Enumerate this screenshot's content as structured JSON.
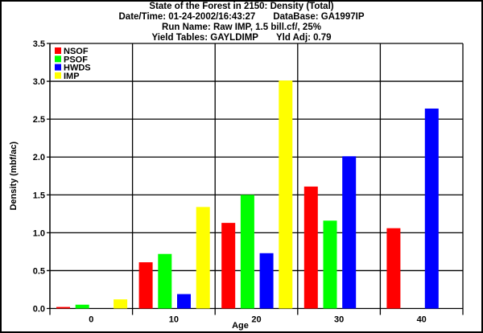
{
  "chart_data": {
    "type": "bar",
    "title": "State of the Forest in 2150: Density (Total)",
    "subtitle_lines": [
      {
        "left": "Date/Time: 01-24-2002/16:43:27",
        "right": "DataBase: GA1997IP"
      },
      {
        "left": "Run Name: Raw IMP, 1.5 bill.cf/, 25%",
        "right": ""
      },
      {
        "left": "Yield Tables: GAYLDIMP",
        "right": "Yld Adj: 0.79"
      }
    ],
    "xlabel": "Age",
    "ylabel": "Density (mbf/ac)",
    "ylim": [
      0,
      3.5
    ],
    "yticks": [
      "0.0",
      "0.5",
      "1.0",
      "1.5",
      "2.0",
      "2.5",
      "3.0",
      "3.5"
    ],
    "categories": [
      "0",
      "10",
      "20",
      "30",
      "40"
    ],
    "grid": true,
    "legend_position": "top-left",
    "series": [
      {
        "name": "NSOF",
        "color": "#ff0000",
        "values": [
          0.02,
          0.61,
          1.13,
          1.61,
          1.06
        ]
      },
      {
        "name": "PSOF",
        "color": "#00ff00",
        "values": [
          0.05,
          0.72,
          1.5,
          1.16,
          0
        ]
      },
      {
        "name": "HWDS",
        "color": "#0000ff",
        "values": [
          0,
          0.19,
          0.73,
          2.01,
          2.64
        ]
      },
      {
        "name": "IMP",
        "color": "#ffff00",
        "values": [
          0.12,
          1.34,
          3.01,
          0,
          0
        ]
      }
    ]
  }
}
